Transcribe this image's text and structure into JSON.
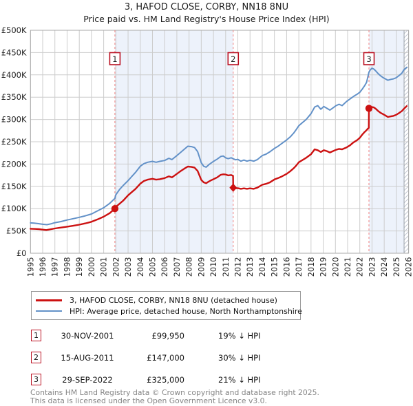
{
  "title": "3, HAFOD CLOSE, CORBY, NN18 8NU",
  "subtitle": "Price paid vs. HM Land Registry's House Price Index (HPI)",
  "colors": {
    "price_line": "#cc1111",
    "hpi_line": "#6291c8",
    "band": "#edf2fb",
    "grid": "#cccccc",
    "plot_border": "#aaaaaa",
    "sale_dash": "#f08080",
    "flag_border": "#bb1122",
    "hatch_line": "#c4c9d4",
    "hatch_edge": "#9aa0a8"
  },
  "legend": {
    "series": [
      {
        "label": "3, HAFOD CLOSE, CORBY, NN18 8NU (detached house)",
        "color": "#cc1111"
      },
      {
        "label": "HPI: Average price, detached house, North Northamptonshire",
        "color": "#6291c8"
      }
    ]
  },
  "footer": {
    "line1": "Contains HM Land Registry data © Crown copyright and database right 2025.",
    "line2": "This data is licensed under the Open Government Licence v3.0."
  },
  "chart_data": {
    "type": "line",
    "xlabel": "",
    "ylabel": "",
    "xlim": [
      1995,
      2026
    ],
    "ylim": [
      0,
      500000
    ],
    "grid": true,
    "legend_position": "below",
    "y_ticks": [
      "£0",
      "£50K",
      "£100K",
      "£150K",
      "£200K",
      "£250K",
      "£300K",
      "£350K",
      "£400K",
      "£450K",
      "£500K"
    ],
    "x_ticks": [
      1995,
      1996,
      1997,
      1998,
      1999,
      2000,
      2001,
      2002,
      2003,
      2004,
      2005,
      2006,
      2007,
      2008,
      2009,
      2010,
      2011,
      2012,
      2013,
      2014,
      2015,
      2016,
      2017,
      2018,
      2019,
      2020,
      2021,
      2022,
      2023,
      2024,
      2025,
      2026
    ],
    "bands": [
      {
        "from": 2001.92,
        "to": 2011.62
      },
      {
        "from": 2022.75,
        "to": 2025.63
      }
    ],
    "hatch_from": 2025.63,
    "sales": [
      {
        "num": "1",
        "date": "30-NOV-2001",
        "year": 2001.92,
        "price": 99950,
        "price_text": "£99,950",
        "vs_hpi": "19% ↓ HPI",
        "marker": "circle"
      },
      {
        "num": "2",
        "date": "15-AUG-2011",
        "year": 2011.62,
        "price": 147000,
        "price_text": "£147,000",
        "vs_hpi": "30% ↓ HPI",
        "marker": "diamond"
      },
      {
        "num": "3",
        "date": "29-SEP-2022",
        "year": 2022.75,
        "price": 325000,
        "price_text": "£325,000",
        "vs_hpi": "21% ↓ HPI",
        "marker": "circle"
      }
    ],
    "series": [
      {
        "name": "HPI: Average price, detached house, North Northamptonshire",
        "color": "#6291c8",
        "width": 2,
        "points": [
          [
            1995.0,
            68000
          ],
          [
            1995.3,
            67500
          ],
          [
            1995.6,
            66500
          ],
          [
            1996.0,
            65000
          ],
          [
            1996.35,
            64000
          ],
          [
            1996.7,
            66000
          ],
          [
            1997.0,
            68500
          ],
          [
            1997.5,
            71000
          ],
          [
            1998.0,
            74500
          ],
          [
            1998.5,
            77500
          ],
          [
            1999.0,
            80500
          ],
          [
            1999.5,
            84000
          ],
          [
            2000.0,
            88000
          ],
          [
            2000.5,
            95000
          ],
          [
            2001.0,
            102000
          ],
          [
            2001.5,
            112000
          ],
          [
            2001.92,
            123000
          ],
          [
            2002.0,
            131000
          ],
          [
            2002.3,
            143000
          ],
          [
            2002.6,
            152000
          ],
          [
            2003.0,
            163000
          ],
          [
            2003.3,
            172000
          ],
          [
            2003.6,
            181000
          ],
          [
            2004.0,
            195000
          ],
          [
            2004.3,
            201000
          ],
          [
            2004.6,
            204000
          ],
          [
            2005.0,
            206000
          ],
          [
            2005.3,
            204000
          ],
          [
            2005.6,
            206000
          ],
          [
            2006.0,
            208000
          ],
          [
            2006.35,
            213000
          ],
          [
            2006.6,
            210000
          ],
          [
            2007.0,
            219000
          ],
          [
            2007.3,
            226000
          ],
          [
            2007.6,
            233000
          ],
          [
            2007.9,
            240000
          ],
          [
            2008.2,
            239000
          ],
          [
            2008.45,
            237000
          ],
          [
            2008.7,
            228000
          ],
          [
            2009.0,
            203000
          ],
          [
            2009.2,
            195000
          ],
          [
            2009.4,
            193000
          ],
          [
            2009.6,
            198000
          ],
          [
            2009.8,
            202000
          ],
          [
            2010.0,
            206000
          ],
          [
            2010.3,
            211000
          ],
          [
            2010.6,
            217000
          ],
          [
            2010.8,
            218000
          ],
          [
            2011.0,
            214000
          ],
          [
            2011.2,
            212000
          ],
          [
            2011.45,
            214000
          ],
          [
            2011.62,
            212000
          ],
          [
            2011.8,
            209500
          ],
          [
            2012.0,
            210500
          ],
          [
            2012.25,
            206500
          ],
          [
            2012.5,
            209000
          ],
          [
            2012.75,
            206500
          ],
          [
            2013.0,
            208500
          ],
          [
            2013.3,
            206500
          ],
          [
            2013.6,
            210000
          ],
          [
            2014.0,
            219000
          ],
          [
            2014.3,
            222000
          ],
          [
            2014.6,
            227000
          ],
          [
            2015.0,
            235000
          ],
          [
            2015.3,
            240000
          ],
          [
            2015.6,
            246000
          ],
          [
            2016.0,
            254000
          ],
          [
            2016.3,
            261000
          ],
          [
            2016.6,
            270000
          ],
          [
            2016.8,
            278000
          ],
          [
            2017.0,
            286000
          ],
          [
            2017.3,
            293000
          ],
          [
            2017.6,
            300000
          ],
          [
            2018.0,
            313000
          ],
          [
            2018.3,
            328000
          ],
          [
            2018.55,
            331000
          ],
          [
            2018.8,
            323000
          ],
          [
            2019.05,
            329000
          ],
          [
            2019.3,
            325000
          ],
          [
            2019.55,
            321000
          ],
          [
            2019.8,
            326000
          ],
          [
            2020.05,
            331000
          ],
          [
            2020.3,
            334000
          ],
          [
            2020.55,
            331000
          ],
          [
            2020.9,
            340000
          ],
          [
            2021.2,
            346000
          ],
          [
            2021.5,
            352000
          ],
          [
            2021.8,
            357000
          ],
          [
            2022.0,
            361000
          ],
          [
            2022.2,
            368000
          ],
          [
            2022.4,
            376000
          ],
          [
            2022.55,
            383000
          ],
          [
            2022.65,
            394000
          ],
          [
            2022.75,
            406000
          ],
          [
            2022.85,
            411000
          ],
          [
            2023.0,
            415000
          ],
          [
            2023.15,
            413000
          ],
          [
            2023.3,
            409000
          ],
          [
            2023.5,
            403000
          ],
          [
            2023.7,
            398000
          ],
          [
            2023.9,
            394000
          ],
          [
            2024.1,
            391000
          ],
          [
            2024.3,
            388000
          ],
          [
            2024.55,
            390000
          ],
          [
            2024.75,
            391000
          ],
          [
            2024.95,
            393000
          ],
          [
            2025.2,
            398000
          ],
          [
            2025.45,
            404000
          ],
          [
            2025.6,
            411000
          ],
          [
            2025.85,
            417000
          ]
        ]
      },
      {
        "name": "3, HAFOD CLOSE, CORBY, NN18 8NU (detached house)",
        "color": "#cc1111",
        "width": 2.4,
        "points": [
          [
            1995.0,
            55000
          ],
          [
            1995.4,
            54500
          ],
          [
            1995.7,
            54000
          ],
          [
            1996.0,
            53000
          ],
          [
            1996.3,
            52000
          ],
          [
            1996.6,
            53500
          ],
          [
            1997.0,
            55500
          ],
          [
            1997.5,
            57500
          ],
          [
            1998.0,
            59500
          ],
          [
            1998.5,
            61500
          ],
          [
            1999.0,
            64000
          ],
          [
            1999.5,
            67000
          ],
          [
            2000.0,
            70500
          ],
          [
            2000.5,
            76000
          ],
          [
            2001.0,
            82000
          ],
          [
            2001.5,
            90000
          ],
          [
            2001.92,
            99950
          ],
          [
            2002.0,
            104000
          ],
          [
            2002.3,
            111000
          ],
          [
            2002.6,
            118000
          ],
          [
            2003.0,
            130000
          ],
          [
            2003.3,
            137000
          ],
          [
            2003.6,
            144000
          ],
          [
            2004.0,
            156000
          ],
          [
            2004.3,
            162000
          ],
          [
            2004.6,
            165000
          ],
          [
            2005.0,
            167000
          ],
          [
            2005.3,
            165000
          ],
          [
            2005.6,
            166000
          ],
          [
            2006.0,
            168500
          ],
          [
            2006.35,
            172500
          ],
          [
            2006.6,
            170000
          ],
          [
            2007.0,
            178000
          ],
          [
            2007.3,
            184000
          ],
          [
            2007.6,
            189500
          ],
          [
            2007.9,
            194500
          ],
          [
            2008.2,
            193500
          ],
          [
            2008.45,
            192000
          ],
          [
            2008.7,
            184500
          ],
          [
            2009.0,
            164500
          ],
          [
            2009.2,
            159000
          ],
          [
            2009.4,
            157000
          ],
          [
            2009.6,
            160500
          ],
          [
            2009.8,
            163500
          ],
          [
            2010.0,
            166000
          ],
          [
            2010.3,
            170000
          ],
          [
            2010.6,
            176000
          ],
          [
            2010.8,
            177000
          ],
          [
            2011.0,
            176500
          ],
          [
            2011.2,
            174500
          ],
          [
            2011.45,
            175500
          ],
          [
            2011.61,
            173500
          ],
          [
            2011.62,
            147000
          ],
          [
            2011.8,
            145500
          ],
          [
            2012.0,
            146000
          ],
          [
            2012.25,
            144500
          ],
          [
            2012.5,
            145500
          ],
          [
            2012.75,
            144500
          ],
          [
            2013.0,
            145500
          ],
          [
            2013.3,
            144500
          ],
          [
            2013.6,
            147000
          ],
          [
            2014.0,
            153500
          ],
          [
            2014.3,
            155500
          ],
          [
            2014.6,
            158500
          ],
          [
            2015.0,
            165500
          ],
          [
            2015.3,
            168500
          ],
          [
            2015.6,
            172000
          ],
          [
            2016.0,
            178000
          ],
          [
            2016.3,
            184000
          ],
          [
            2016.6,
            191000
          ],
          [
            2016.8,
            197000
          ],
          [
            2017.0,
            204000
          ],
          [
            2017.3,
            209000
          ],
          [
            2017.6,
            214000
          ],
          [
            2018.0,
            222000
          ],
          [
            2018.3,
            233000
          ],
          [
            2018.55,
            231000
          ],
          [
            2018.8,
            227000
          ],
          [
            2019.05,
            231000
          ],
          [
            2019.3,
            229000
          ],
          [
            2019.55,
            226000
          ],
          [
            2019.8,
            229000
          ],
          [
            2020.05,
            232000
          ],
          [
            2020.3,
            234000
          ],
          [
            2020.55,
            233000
          ],
          [
            2020.9,
            237000
          ],
          [
            2021.2,
            242000
          ],
          [
            2021.45,
            248000
          ],
          [
            2021.8,
            254000
          ],
          [
            2022.0,
            259000
          ],
          [
            2022.2,
            266000
          ],
          [
            2022.4,
            272000
          ],
          [
            2022.55,
            276000
          ],
          [
            2022.65,
            279000
          ],
          [
            2022.74,
            281000
          ],
          [
            2022.75,
            325000
          ],
          [
            2023.0,
            328000
          ],
          [
            2023.15,
            327000
          ],
          [
            2023.3,
            324000
          ],
          [
            2023.5,
            319000
          ],
          [
            2023.7,
            315000
          ],
          [
            2023.9,
            312000
          ],
          [
            2024.1,
            309000
          ],
          [
            2024.3,
            305500
          ],
          [
            2024.55,
            307000
          ],
          [
            2024.75,
            308000
          ],
          [
            2024.95,
            310000
          ],
          [
            2025.2,
            314000
          ],
          [
            2025.45,
            319000
          ],
          [
            2025.6,
            323500
          ],
          [
            2025.85,
            330000
          ]
        ]
      }
    ]
  },
  "table": {
    "rows": [
      {
        "num": "1",
        "date": "30-NOV-2001",
        "price": "£99,950",
        "hpi": "19% ↓ HPI"
      },
      {
        "num": "2",
        "date": "15-AUG-2011",
        "price": "£147,000",
        "hpi": "30% ↓ HPI"
      },
      {
        "num": "3",
        "date": "29-SEP-2022",
        "price": "£325,000",
        "hpi": "21% ↓ HPI"
      }
    ]
  }
}
